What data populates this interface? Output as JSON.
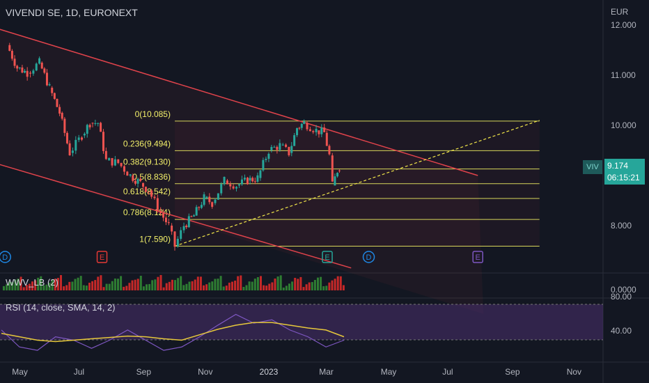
{
  "header": {
    "title": "VIVENDI SE, 1D, EURONEXT",
    "currency": "EUR"
  },
  "price_axis": {
    "ticks": [
      "12.000",
      "11.000",
      "10.000",
      "8.000"
    ]
  },
  "time_axis": {
    "labels": [
      "May",
      "Jul",
      "Sep",
      "Nov",
      "2023",
      "Mar",
      "May",
      "Jul",
      "Sep",
      "Nov"
    ]
  },
  "badge": {
    "symbol": "VIV",
    "price": "9.174",
    "countdown": "06:15:21"
  },
  "panes": {
    "volume": {
      "label": "WWV_LB (2)",
      "axis_value": "0.0000"
    },
    "rsi": {
      "label": "RSI (14, close, SMA, 14, 2)",
      "axis_ticks": [
        "80.00",
        "40.00"
      ]
    }
  },
  "event_markers": [
    "D",
    "E",
    "E",
    "D",
    "E"
  ],
  "colors": {
    "background": "#131722",
    "up": "#26a69a",
    "down": "#ef5350",
    "channel": "#e0434b",
    "fib": "#d8d65a",
    "rsi_band": "#4a2f6e",
    "rsi_line": "#7e57c2",
    "rsi_ma": "#e7c83b"
  },
  "chart_data": {
    "type": "candlestick",
    "symbol": "VIVENDI SE",
    "interval": "1D",
    "exchange": "EURONEXT",
    "x_range": [
      "2022-04",
      "2023-11"
    ],
    "y_range": [
      7.3,
      12.0
    ],
    "last_price": 9.174,
    "price_path": [
      [
        "2022-04-22",
        11.6
      ],
      [
        "2022-05-02",
        11.15
      ],
      [
        "2022-05-12",
        11.05
      ],
      [
        "2022-05-24",
        11.25
      ],
      [
        "2022-06-03",
        10.75
      ],
      [
        "2022-06-13",
        10.25
      ],
      [
        "2022-06-23",
        9.45
      ],
      [
        "2022-07-05",
        9.8
      ],
      [
        "2022-07-13",
        10.05
      ],
      [
        "2022-07-21",
        10.05
      ],
      [
        "2022-07-29",
        9.3
      ],
      [
        "2022-08-10",
        9.25
      ],
      [
        "2022-08-22",
        9.0
      ],
      [
        "2022-09-01",
        8.85
      ],
      [
        "2022-09-09",
        8.7
      ],
      [
        "2022-09-21",
        8.25
      ],
      [
        "2022-09-29",
        8.0
      ],
      [
        "2022-10-05",
        7.59
      ],
      [
        "2022-10-14",
        8.0
      ],
      [
        "2022-10-24",
        8.2
      ],
      [
        "2022-11-03",
        8.55
      ],
      [
        "2022-11-11",
        8.45
      ],
      [
        "2022-11-23",
        8.9
      ],
      [
        "2022-12-05",
        8.8
      ],
      [
        "2022-12-16",
        8.9
      ],
      [
        "2022-12-26",
        8.95
      ],
      [
        "2023-01-06",
        9.5
      ],
      [
        "2023-01-17",
        9.6
      ],
      [
        "2023-01-26",
        9.45
      ],
      [
        "2023-02-03",
        9.95
      ],
      [
        "2023-02-10",
        10.05
      ],
      [
        "2023-02-22",
        9.9
      ],
      [
        "2023-03-02",
        9.85
      ],
      [
        "2023-03-07",
        9.4
      ],
      [
        "2023-03-10",
        8.8
      ],
      [
        "2023-03-15",
        9.1
      ],
      [
        "2023-03-17",
        9.174
      ]
    ],
    "fibonacci": {
      "anchor_low": 7.59,
      "anchor_high": 10.085,
      "levels": [
        {
          "label": "0(10.085)",
          "ratio": 0,
          "price": 10.085
        },
        {
          "label": "0.236(9.494)",
          "ratio": 0.236,
          "price": 9.494
        },
        {
          "label": "0.382(9.130)",
          "ratio": 0.382,
          "price": 9.13
        },
        {
          "label": "0.5(8.836)",
          "ratio": 0.5,
          "price": 8.836
        },
        {
          "label": "0.618(8.542)",
          "ratio": 0.618,
          "price": 8.542
        },
        {
          "label": "0.786(8.124)",
          "ratio": 0.786,
          "price": 8.124
        },
        {
          "label": "1(7.590)",
          "ratio": 1,
          "price": 7.59
        }
      ]
    },
    "trendlines": [
      {
        "kind": "channel-upper",
        "from": [
          "2022-04",
          12.0
        ],
        "to": [
          "2023-08",
          9.0
        ]
      },
      {
        "kind": "channel-lower",
        "from": [
          "2022-04",
          9.3
        ],
        "to": [
          "2023-03",
          7.35
        ]
      },
      {
        "kind": "dashed-support",
        "from": [
          "2022-10-05",
          7.59
        ],
        "to": [
          "2023-10",
          10.1
        ]
      }
    ],
    "rsi": {
      "range": [
        20,
        100
      ],
      "rsi_values": [
        55,
        30,
        25,
        45,
        40,
        28,
        40,
        55,
        40,
        25,
        30,
        45,
        62,
        78,
        65,
        70,
        55,
        45,
        30,
        40
      ],
      "ma_values": [
        50,
        45,
        40,
        38,
        40,
        42,
        44,
        46,
        45,
        42,
        40,
        48,
        56,
        62,
        66,
        66,
        62,
        58,
        55,
        45
      ]
    }
  }
}
